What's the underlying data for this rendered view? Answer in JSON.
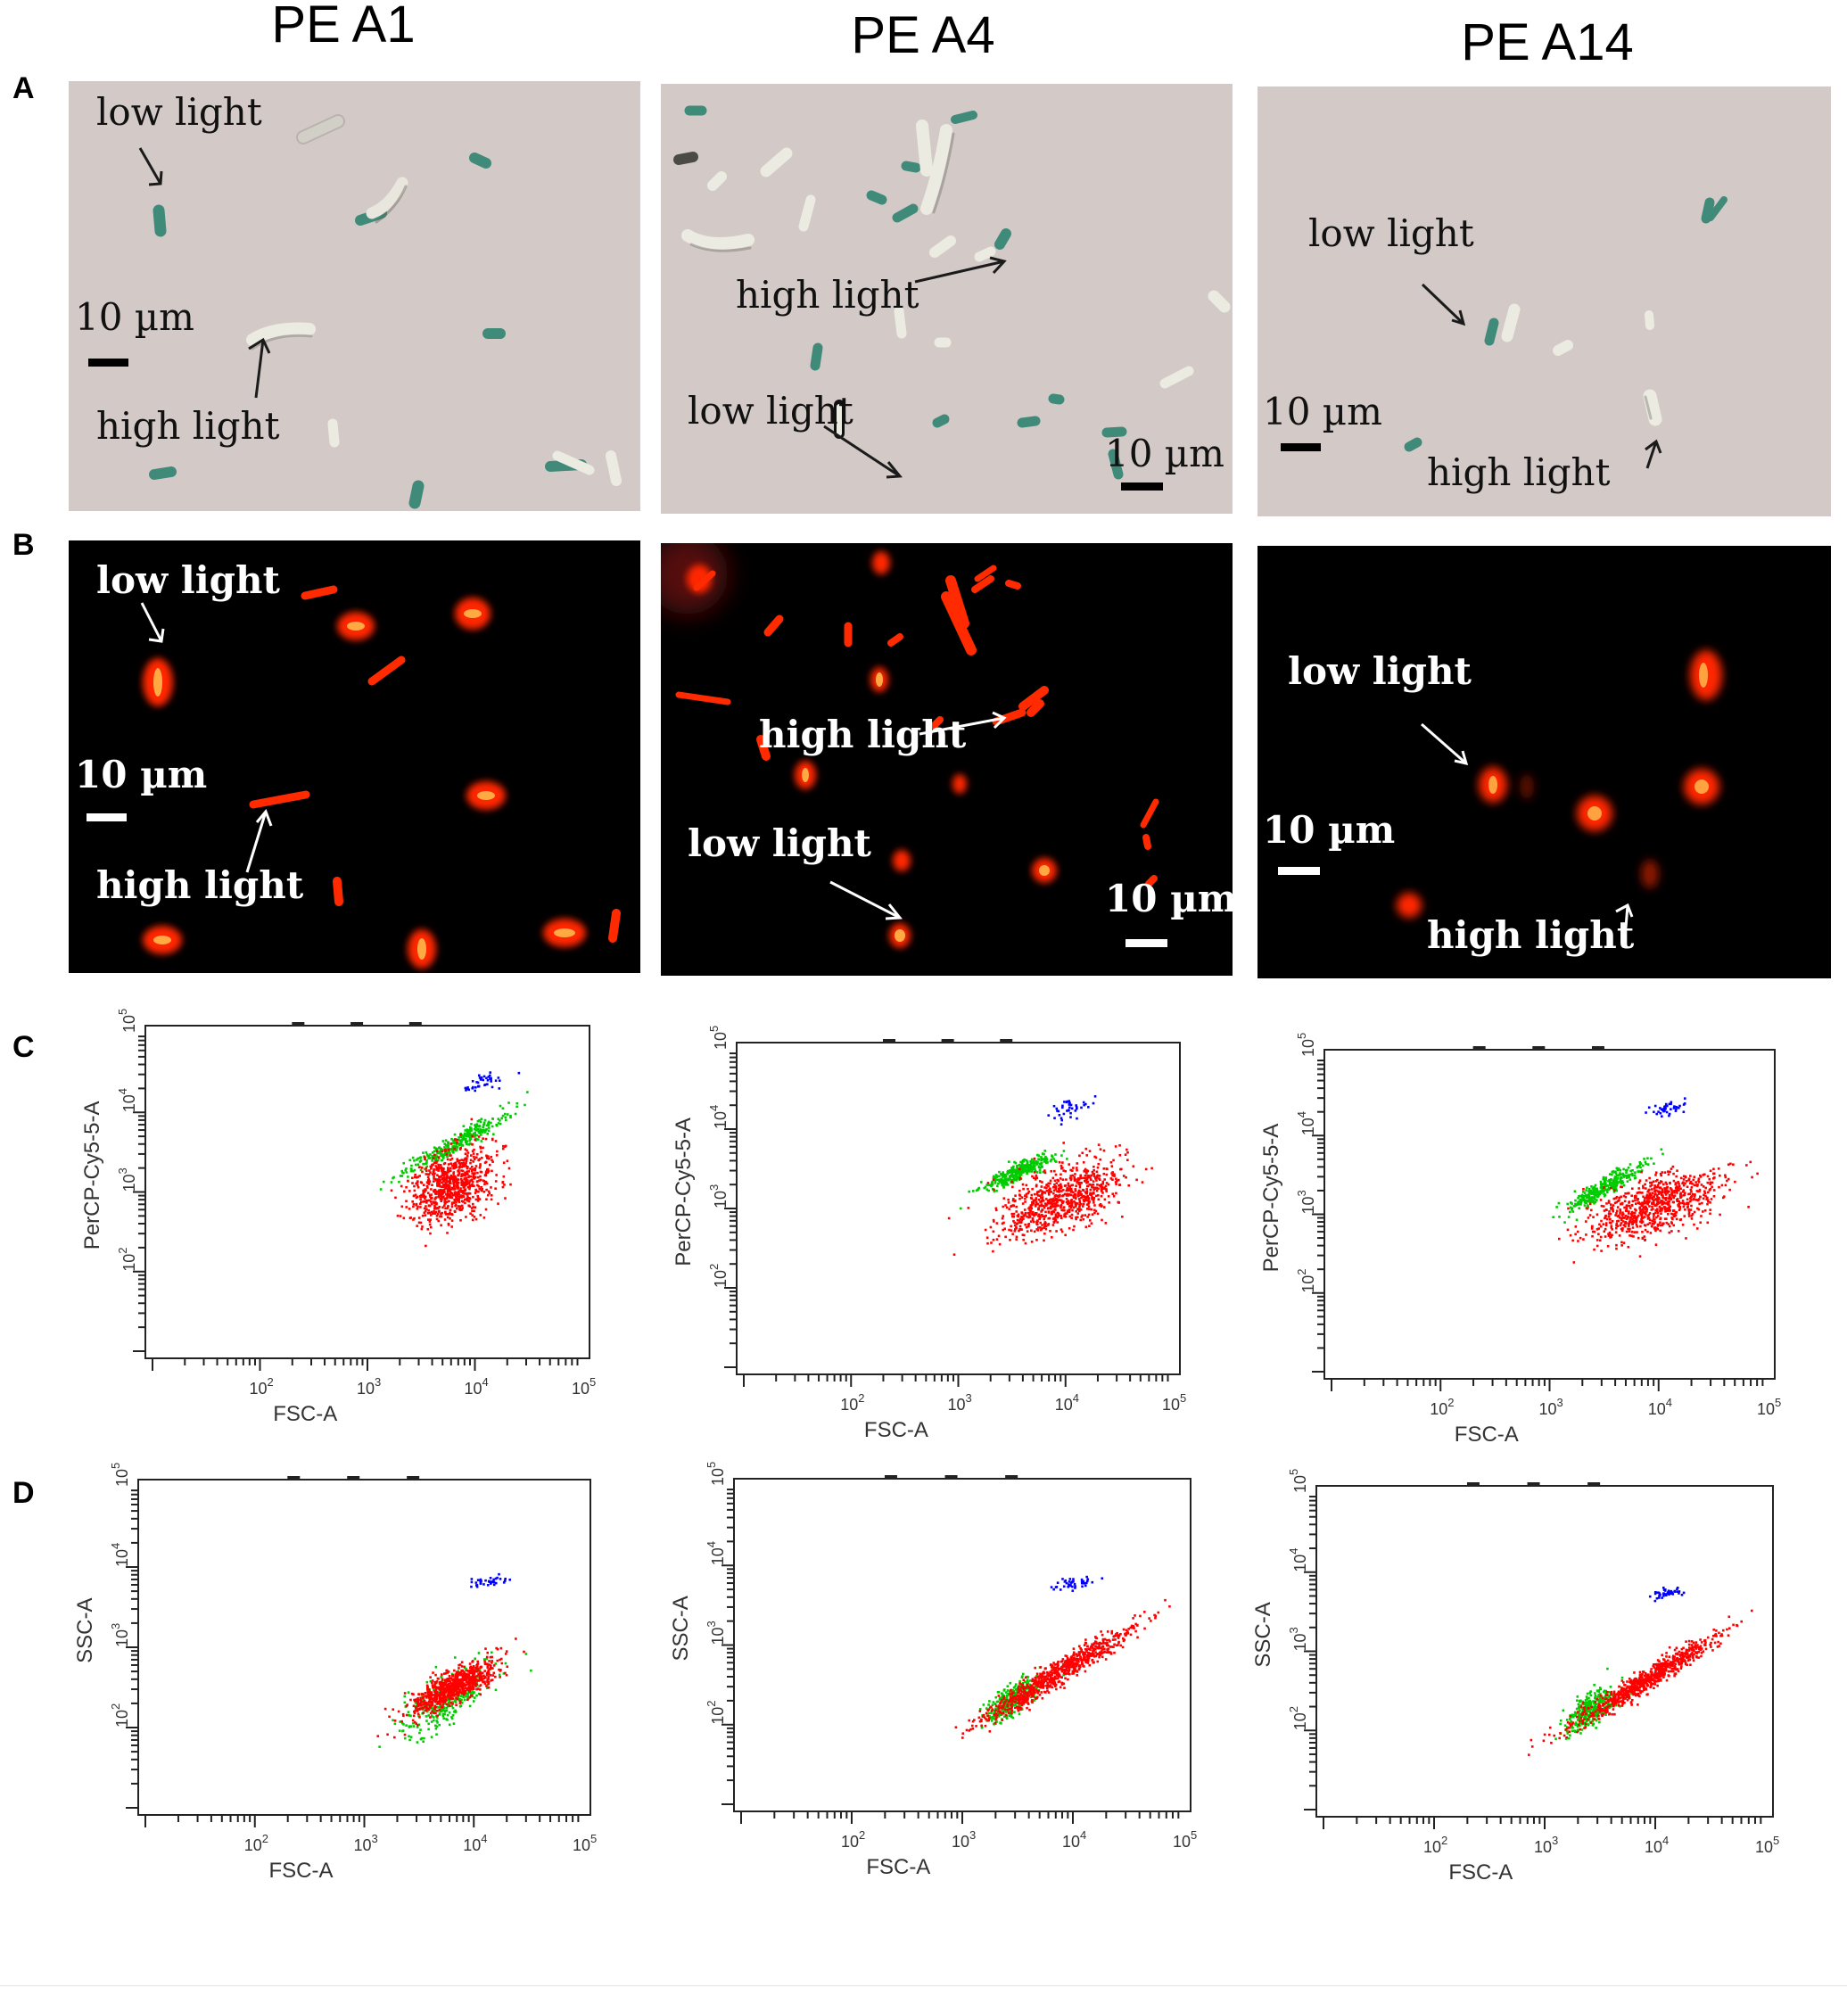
{
  "columns": [
    {
      "title": "PE A1"
    },
    {
      "title": "PE A4"
    },
    {
      "title": "PE A14"
    }
  ],
  "rows": {
    "A": {
      "letter": "A",
      "kind": "brightfield"
    },
    "B": {
      "letter": "B",
      "kind": "fluorescence"
    },
    "C": {
      "letter": "C"
    },
    "D": {
      "letter": "D"
    }
  },
  "annotations": {
    "low_light": "low light",
    "high_light": "high light",
    "scale_bar": "10 µm"
  },
  "flow_panels": {
    "C": {
      "xlabel": "FSC-A",
      "ylabel": "PerCP-Cy5-5-A"
    },
    "D": {
      "xlabel": "FSC-A",
      "ylabel": "SSC-A"
    }
  },
  "chart_data": [
    {
      "panel": "C-PE A1",
      "type": "scatter",
      "xlabel": "FSC-A",
      "ylabel": "PerCP-Cy5-5-A",
      "xscale": "log",
      "yscale": "log",
      "xlim": [
        10,
        100000
      ],
      "ylim": [
        10,
        100000
      ],
      "xticks": [
        "10^2",
        "10^3",
        "10^4",
        "10^5"
      ],
      "yticks": [
        "10^2",
        "10^3",
        "10^4",
        "10^5"
      ],
      "populations": [
        {
          "color": "#0000ff",
          "center": [
            13000,
            25000
          ],
          "spread": [
            0.1,
            0.05
          ],
          "slope": 0.6
        },
        {
          "color": "#00cc00",
          "center": [
            6500,
            4000
          ],
          "spread": [
            0.25,
            0.06
          ],
          "slope": 0.75
        },
        {
          "color": "#ff0000",
          "center": [
            6000,
            1200
          ],
          "spread": [
            0.2,
            0.22
          ],
          "slope": 0.4
        }
      ]
    },
    {
      "panel": "C-PE A4",
      "type": "scatter",
      "xlabel": "FSC-A",
      "ylabel": "PerCP-Cy5-5-A",
      "xscale": "log",
      "yscale": "log",
      "xlim": [
        10,
        100000
      ],
      "ylim": [
        10,
        100000
      ],
      "xticks": [
        "10^2",
        "10^3",
        "10^4",
        "10^5"
      ],
      "yticks": [
        "10^2",
        "10^3",
        "10^4",
        "10^5"
      ],
      "populations": [
        {
          "color": "#0000ff",
          "center": [
            11000,
            17000
          ],
          "spread": [
            0.1,
            0.06
          ],
          "slope": 0.3
        },
        {
          "color": "#00cc00",
          "center": [
            3500,
            2800
          ],
          "spread": [
            0.16,
            0.05
          ],
          "slope": 0.6
        },
        {
          "color": "#ff0000",
          "center": [
            9000,
            1300
          ],
          "spread": [
            0.3,
            0.2
          ],
          "slope": 0.45
        }
      ]
    },
    {
      "panel": "C-PE A14",
      "type": "scatter",
      "xlabel": "FSC-A",
      "ylabel": "PerCP-Cy5-5-A",
      "xscale": "log",
      "yscale": "log",
      "xlim": [
        10,
        100000
      ],
      "ylim": [
        10,
        100000
      ],
      "xticks": [
        "10^2",
        "10^3",
        "10^4",
        "10^5"
      ],
      "yticks": [
        "10^2",
        "10^3",
        "10^4",
        "10^5"
      ],
      "populations": [
        {
          "color": "#0000ff",
          "center": [
            12000,
            22000
          ],
          "spread": [
            0.08,
            0.04
          ],
          "slope": 0.3
        },
        {
          "color": "#00cc00",
          "center": [
            3200,
            2200
          ],
          "spread": [
            0.17,
            0.06
          ],
          "slope": 0.8
        },
        {
          "color": "#ff0000",
          "center": [
            9500,
            1300
          ],
          "spread": [
            0.3,
            0.18
          ],
          "slope": 0.4
        }
      ]
    },
    {
      "panel": "D-PE A1",
      "type": "scatter",
      "xlabel": "FSC-A",
      "ylabel": "SSC-A",
      "xscale": "log",
      "yscale": "log",
      "xlim": [
        10,
        100000
      ],
      "ylim": [
        10,
        100000
      ],
      "xticks": [
        "10^2",
        "10^3",
        "10^4",
        "10^5"
      ],
      "yticks": [
        "10^2",
        "10^3",
        "10^4",
        "10^5"
      ],
      "populations": [
        {
          "color": "#0000ff",
          "center": [
            14000,
            6500
          ],
          "spread": [
            0.1,
            0.03
          ],
          "slope": 0.1
        },
        {
          "color": "#00cc00",
          "center": [
            5500,
            220
          ],
          "spread": [
            0.22,
            0.16
          ],
          "slope": 0.7
        },
        {
          "color": "#ff0000",
          "center": [
            6500,
            320
          ],
          "spread": [
            0.2,
            0.1
          ],
          "slope": 0.7
        }
      ]
    },
    {
      "panel": "D-PE A4",
      "type": "scatter",
      "xlabel": "FSC-A",
      "ylabel": "SSC-A",
      "xscale": "log",
      "yscale": "log",
      "xlim": [
        10,
        100000
      ],
      "ylim": [
        10,
        100000
      ],
      "xticks": [
        "10^2",
        "10^3",
        "10^4",
        "10^5"
      ],
      "yticks": [
        "10^2",
        "10^3",
        "10^4",
        "10^5"
      ],
      "populations": [
        {
          "color": "#0000ff",
          "center": [
            10000,
            6000
          ],
          "spread": [
            0.1,
            0.04
          ],
          "slope": 0.2
        },
        {
          "color": "#00cc00",
          "center": [
            2800,
            200
          ],
          "spread": [
            0.12,
            0.1
          ],
          "slope": 0.8
        },
        {
          "color": "#ff0000",
          "center": [
            7000,
            420
          ],
          "spread": [
            0.33,
            0.08
          ],
          "slope": 0.85
        }
      ]
    },
    {
      "panel": "D-PE A14",
      "type": "scatter",
      "xlabel": "FSC-A",
      "ylabel": "SSC-A",
      "xscale": "log",
      "yscale": "log",
      "xlim": [
        10,
        100000
      ],
      "ylim": [
        10,
        100000
      ],
      "xticks": [
        "10^2",
        "10^3",
        "10^4",
        "10^5"
      ],
      "yticks": [
        "10^2",
        "10^3",
        "10^4",
        "10^5"
      ],
      "populations": [
        {
          "color": "#0000ff",
          "center": [
            12500,
            5500
          ],
          "spread": [
            0.07,
            0.03
          ],
          "slope": 0.2
        },
        {
          "color": "#00cc00",
          "center": [
            2600,
            180
          ],
          "spread": [
            0.12,
            0.1
          ],
          "slope": 0.8
        },
        {
          "color": "#ff0000",
          "center": [
            8000,
            420
          ],
          "spread": [
            0.33,
            0.07
          ],
          "slope": 0.85
        }
      ]
    }
  ]
}
